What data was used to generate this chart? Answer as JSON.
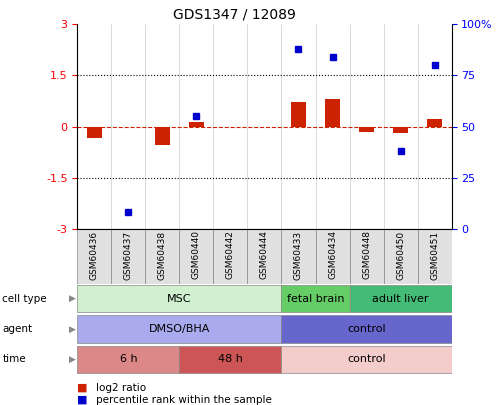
{
  "title": "GDS1347 / 12089",
  "samples": [
    "GSM60436",
    "GSM60437",
    "GSM60438",
    "GSM60440",
    "GSM60442",
    "GSM60444",
    "GSM60433",
    "GSM60434",
    "GSM60448",
    "GSM60450",
    "GSM60451"
  ],
  "log2_ratio": [
    -0.35,
    0.0,
    -0.55,
    0.12,
    0.0,
    0.0,
    0.72,
    0.82,
    -0.15,
    -0.18,
    0.22
  ],
  "percentile_rank": [
    null,
    8.0,
    null,
    55.0,
    null,
    null,
    88.0,
    84.0,
    null,
    38.0,
    80.0
  ],
  "ylim_left": [
    -3,
    3
  ],
  "ylim_right": [
    0,
    100
  ],
  "yticks_left": [
    -3,
    -1.5,
    0,
    1.5,
    3
  ],
  "yticks_right": [
    0,
    25,
    50,
    75,
    100
  ],
  "ytick_labels_left": [
    "-3",
    "-1.5",
    "0",
    "1.5",
    "3"
  ],
  "ytick_labels_right": [
    "0",
    "25",
    "50",
    "75",
    "100%"
  ],
  "hline_dotted_values": [
    1.5,
    -1.5
  ],
  "bar_color": "#cc2200",
  "dot_color": "#0000cc",
  "cell_type_groups": [
    {
      "label": "MSC",
      "start": 0,
      "end": 6,
      "color": "#d0f0d0"
    },
    {
      "label": "fetal brain",
      "start": 6,
      "end": 8,
      "color": "#66cc66"
    },
    {
      "label": "adult liver",
      "start": 8,
      "end": 11,
      "color": "#44bb77"
    }
  ],
  "agent_groups": [
    {
      "label": "DMSO/BHA",
      "start": 0,
      "end": 6,
      "color": "#aaaaee"
    },
    {
      "label": "control",
      "start": 6,
      "end": 11,
      "color": "#6666cc"
    }
  ],
  "time_groups": [
    {
      "label": "6 h",
      "start": 0,
      "end": 3,
      "color": "#dd8888"
    },
    {
      "label": "48 h",
      "start": 3,
      "end": 6,
      "color": "#cc5555"
    },
    {
      "label": "control",
      "start": 6,
      "end": 11,
      "color": "#f5cccc"
    }
  ],
  "legend_items": [
    {
      "label": "log2 ratio",
      "color": "#cc2200"
    },
    {
      "label": "percentile rank within the sample",
      "color": "#0000cc"
    }
  ]
}
